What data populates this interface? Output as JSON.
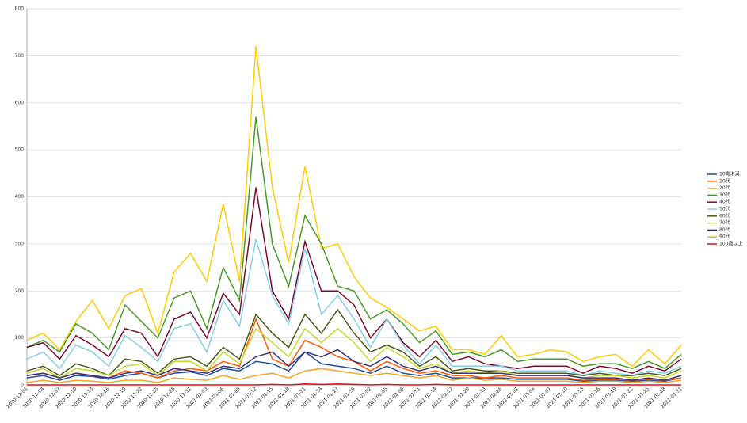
{
  "chart_data": {
    "type": "line",
    "categories": [
      "2020-12-01",
      "2020-12-04",
      "2020-12-07",
      "2020-12-10",
      "2020-12-13",
      "2020-12-16",
      "2020-12-19",
      "2020-12-22",
      "2020-12-25",
      "2020-12-28",
      "2020-12-31",
      "2021-01-03",
      "2021-01-06",
      "2021-01-09",
      "2021-01-12",
      "2021-01-15",
      "2021-01-18",
      "2021-01-21",
      "2021-01-24",
      "2021-01-27",
      "2021-01-30",
      "2021-02-02",
      "2021-02-05",
      "2021-02-08",
      "2021-02-11",
      "2021-02-14",
      "2021-02-17",
      "2021-02-20",
      "2021-02-23",
      "2021-02-26",
      "2021-03-01",
      "2021-03-04",
      "2021-03-07",
      "2021-03-10",
      "2021-03-13",
      "2021-03-16",
      "2021-03-19",
      "2021-03-22",
      "2021-03-25",
      "2021-03-28",
      "2021-03-31"
    ],
    "series": [
      {
        "name": "10歳未満",
        "color": "#1f4e9c",
        "values": [
          15,
          20,
          10,
          20,
          18,
          12,
          20,
          25,
          15,
          25,
          28,
          20,
          35,
          30,
          50,
          45,
          30,
          70,
          45,
          40,
          35,
          25,
          40,
          25,
          20,
          25,
          15,
          15,
          15,
          15,
          12,
          12,
          12,
          12,
          8,
          10,
          10,
          8,
          10,
          8,
          15
        ]
      },
      {
        "name": "10代",
        "color": "#ff5a00",
        "values": [
          20,
          25,
          15,
          25,
          20,
          15,
          30,
          25,
          15,
          30,
          35,
          30,
          50,
          40,
          140,
          55,
          40,
          95,
          80,
          60,
          50,
          30,
          50,
          35,
          25,
          30,
          20,
          20,
          15,
          20,
          15,
          15,
          15,
          15,
          10,
          12,
          12,
          10,
          12,
          10,
          15
        ]
      },
      {
        "name": "20代",
        "color": "#ffcc00",
        "values": [
          95,
          110,
          75,
          135,
          180,
          120,
          190,
          205,
          110,
          240,
          280,
          220,
          385,
          220,
          720,
          420,
          260,
          465,
          290,
          300,
          230,
          185,
          165,
          140,
          115,
          125,
          75,
          75,
          65,
          105,
          60,
          65,
          75,
          70,
          50,
          60,
          65,
          40,
          75,
          45,
          85
        ]
      },
      {
        "name": "30代",
        "color": "#4a9a2a",
        "values": [
          80,
          95,
          70,
          130,
          110,
          75,
          170,
          135,
          100,
          185,
          200,
          120,
          250,
          180,
          570,
          300,
          210,
          360,
          300,
          210,
          200,
          140,
          160,
          130,
          90,
          115,
          65,
          70,
          60,
          75,
          50,
          55,
          55,
          55,
          40,
          45,
          45,
          35,
          50,
          35,
          65
        ]
      },
      {
        "name": "40代",
        "color": "#7a0b2a",
        "values": [
          80,
          90,
          55,
          105,
          85,
          60,
          120,
          110,
          60,
          140,
          155,
          100,
          195,
          150,
          420,
          200,
          140,
          305,
          200,
          200,
          170,
          100,
          140,
          90,
          60,
          95,
          50,
          60,
          45,
          40,
          35,
          40,
          40,
          40,
          25,
          40,
          35,
          25,
          40,
          30,
          55
        ]
      },
      {
        "name": "50代",
        "color": "#87ceeb",
        "values": [
          55,
          70,
          35,
          85,
          70,
          40,
          105,
          80,
          50,
          120,
          130,
          70,
          180,
          125,
          310,
          190,
          130,
          290,
          150,
          190,
          140,
          80,
          140,
          85,
          45,
          85,
          40,
          40,
          40,
          40,
          30,
          30,
          30,
          30,
          20,
          30,
          25,
          20,
          30,
          25,
          40
        ]
      },
      {
        "name": "60代",
        "color": "#4b5a1a",
        "values": [
          30,
          40,
          20,
          45,
          35,
          20,
          55,
          50,
          25,
          55,
          60,
          40,
          80,
          55,
          150,
          110,
          80,
          150,
          110,
          160,
          110,
          70,
          85,
          70,
          40,
          60,
          30,
          35,
          30,
          30,
          25,
          25,
          25,
          25,
          20,
          25,
          20,
          20,
          25,
          20,
          35
        ]
      },
      {
        "name": "70代",
        "color": "#c5d82a",
        "values": [
          25,
          35,
          15,
          35,
          30,
          20,
          40,
          45,
          20,
          50,
          50,
          30,
          70,
          45,
          120,
          90,
          60,
          120,
          90,
          120,
          90,
          50,
          80,
          60,
          35,
          45,
          25,
          30,
          25,
          30,
          20,
          20,
          20,
          20,
          15,
          20,
          20,
          15,
          20,
          15,
          30
        ]
      },
      {
        "name": "80代",
        "color": "#3a2f7a",
        "values": [
          20,
          25,
          15,
          25,
          20,
          15,
          25,
          30,
          20,
          35,
          30,
          25,
          40,
          35,
          60,
          70,
          40,
          70,
          60,
          75,
          50,
          40,
          60,
          40,
          30,
          40,
          25,
          25,
          25,
          25,
          20,
          20,
          20,
          20,
          15,
          15,
          15,
          10,
          15,
          10,
          20
        ]
      },
      {
        "name": "90代",
        "color": "#f5a623",
        "values": [
          5,
          10,
          5,
          10,
          8,
          5,
          10,
          10,
          5,
          15,
          12,
          10,
          20,
          12,
          20,
          25,
          15,
          30,
          35,
          30,
          25,
          20,
          25,
          20,
          15,
          20,
          10,
          15,
          10,
          12,
          8,
          8,
          8,
          8,
          5,
          8,
          8,
          5,
          8,
          5,
          10
        ]
      },
      {
        "name": "100歳以上",
        "color": "#e01010",
        "values": [
          0,
          0,
          0,
          0,
          0,
          0,
          0,
          0,
          0,
          0,
          0,
          0,
          0,
          0,
          0,
          1,
          0,
          2,
          1,
          2,
          1,
          0,
          1,
          0,
          0,
          1,
          0,
          0,
          0,
          0,
          0,
          0,
          0,
          0,
          0,
          0,
          0,
          0,
          0,
          0,
          0
        ]
      }
    ],
    "ylim": [
      0,
      800
    ],
    "yticks": [
      0,
      100,
      200,
      300,
      400,
      500,
      600,
      700,
      800
    ],
    "grid": true,
    "legend": "right"
  }
}
